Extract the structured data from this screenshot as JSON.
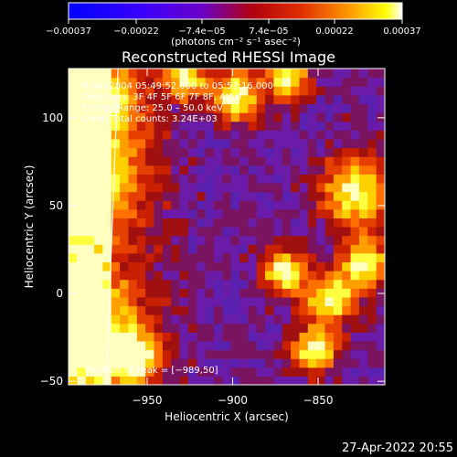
{
  "chart_data": {
    "type": "heatmap",
    "title": "Reconstructed RHESSI Image",
    "xlabel": "Heliocentric X (arcsec)",
    "ylabel": "Heliocentric Y (arcsec)",
    "xlim": [
      -996,
      -811
    ],
    "ylim": [
      -52,
      128
    ],
    "xticks": [
      -950,
      -900,
      -850
    ],
    "xtick_labels": [
      "−950",
      "−900",
      "−850"
    ],
    "yticks": [
      -50,
      0,
      50,
      100
    ],
    "ytick_labels": [
      "−50",
      "0",
      "50",
      "100"
    ],
    "colorbar": {
      "min": -0.00037,
      "max": 0.00037,
      "ticks": [
        -0.00037,
        -0.00022,
        -7.4e-05,
        7.4e-05,
        0.00022,
        0.00037
      ],
      "tick_labels": [
        "−0.00037",
        "−0.00022",
        "−7.4e−05",
        "7.4e−05",
        "0.00022",
        "0.00037"
      ],
      "units": "(photons cm⁻² s⁻¹ asec⁻²)",
      "colors": [
        "#0000ff",
        "#6a00c8",
        "#cc0000",
        "#ff7000",
        "#ffff00",
        "#ffffff"
      ]
    },
    "annotations": {
      "time_range": "8‐Jan‐2004 05:49:52.000 to 05:53:16.000",
      "detectors": "Detectors: 3F 4F 5F 6F 7F 8F, Att 0",
      "energy": "Energy Range: 25.0 – 50.0 keV",
      "clean": "Clean     Total counts: 3.24E+03",
      "peak": "Position of Peak = [−989,50]"
    },
    "peak_position": [
      -989,
      50
    ],
    "limb_line": {
      "x_top": -967,
      "x_bottom": -974
    }
  },
  "footer": {
    "timestamp": "27-Apr-2022 20:55"
  }
}
